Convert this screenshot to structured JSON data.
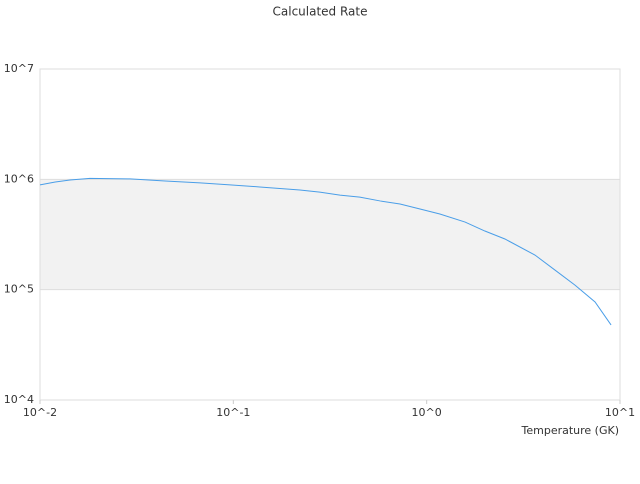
{
  "chart_data": {
    "type": "line",
    "title": "Calculated Rate",
    "x_label": "Temperature (GK)",
    "x_log": true,
    "y_log": true,
    "xlim": [
      0.01,
      10
    ],
    "ylim": [
      10000,
      10000000
    ],
    "xticks": [
      {
        "value": 0.01,
        "label": "10^-2"
      },
      {
        "value": 0.1,
        "label": "10^-1"
      },
      {
        "value": 1,
        "label": "10^0"
      },
      {
        "value": 10,
        "label": "10^1"
      }
    ],
    "yticks": [
      {
        "value": 10000,
        "label": "10^4"
      },
      {
        "value": 100000,
        "label": "10^5"
      },
      {
        "value": 1000000,
        "label": "10^6"
      },
      {
        "value": 10000000,
        "label": "10^7"
      }
    ],
    "grid": true,
    "series": [
      {
        "color": "#4a9ee8",
        "x": [
          0.01,
          0.012,
          0.0143,
          0.0181,
          0.0292,
          0.0444,
          0.0673,
          0.0961,
          0.137,
          0.221,
          0.28,
          0.356,
          0.451,
          0.574,
          0.728,
          0.924,
          1.17,
          1.58,
          2.0,
          2.54,
          3.63,
          4.6,
          5.85,
          7.43,
          8.99
        ],
        "values": [
          890000,
          946000,
          987000,
          1020000,
          1010000,
          966000,
          928000,
          890000,
          853000,
          800000,
          766000,
          720000,
          690000,
          637000,
          598000,
          538000,
          485000,
          410000,
          340000,
          288000,
          206000,
          151000,
          110000,
          77300,
          47900
        ]
      }
    ]
  }
}
